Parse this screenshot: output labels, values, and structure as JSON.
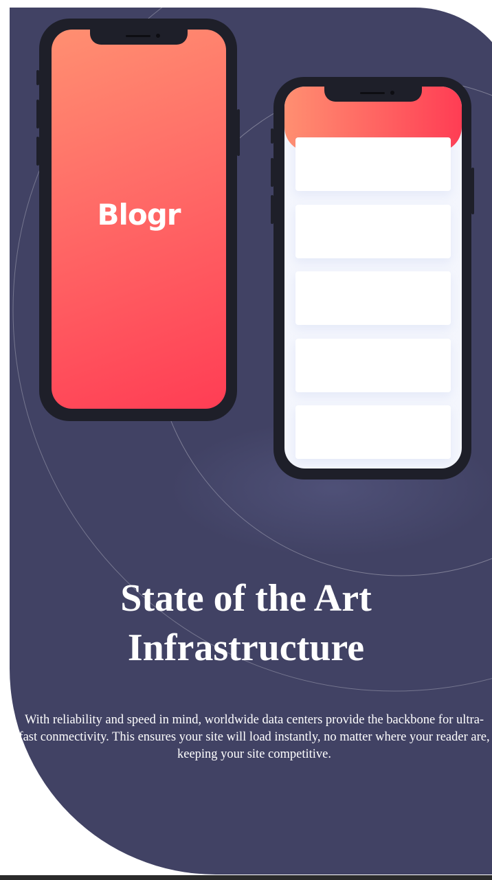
{
  "brand": {
    "logo_text": "Blogr"
  },
  "section": {
    "title_line1": "State of the Art",
    "title_line2": "Infrastructure",
    "description": "With reliability and speed in mind, worldwide data centers provide the backbone for ultra-fast conmectivity. This ensures your site will load instantly, no matter where your reader are, keeping your site competitive."
  },
  "colors": {
    "panel_background": "#414264",
    "gradient_start": "#ff8f71",
    "gradient_end": "#ff3d54",
    "phone_body": "#1e1f29",
    "card_background": "#ffffff",
    "text": "#ffffff"
  },
  "phone_list": {
    "cards": [
      "",
      "",
      "",
      "",
      ""
    ]
  }
}
